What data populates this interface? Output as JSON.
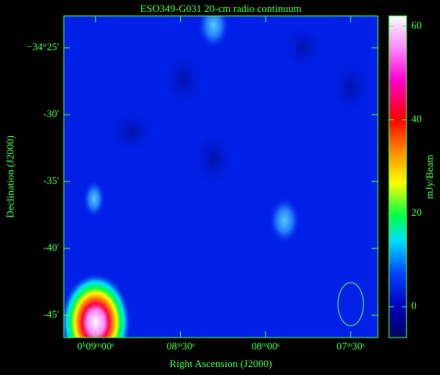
{
  "chart_data": {
    "type": "image",
    "title": "ESO349-G031  20-cm radio continuum",
    "xlabel": "Right Ascension (J2000)",
    "ylabel": "Declination (J2000)",
    "colorbar_label": "mJy/Beam",
    "xlim": [
      551.2,
      440.4
    ],
    "xticks": [
      {
        "value": 540,
        "label": "0ʰ09ᵐ00ˢ"
      },
      {
        "value": 510,
        "label": "08ᵐ30ˢ"
      },
      {
        "value": 480,
        "label": "08ᵐ00ˢ"
      },
      {
        "value": 450,
        "label": "07ᵐ30ˢ"
      }
    ],
    "ylim": [
      -34.7778,
      -34.377
    ],
    "yticks": [
      {
        "value": -34.75,
        "label": "-45'"
      },
      {
        "value": -34.6667,
        "label": "-40'"
      },
      {
        "value": -34.5833,
        "label": "-35'"
      },
      {
        "value": -34.5,
        "label": "-30'"
      },
      {
        "value": -34.4167,
        "label": "−34°25'"
      }
    ],
    "clim": [
      -6.6,
      62.2
    ],
    "cticks": [
      0,
      20,
      40,
      60
    ]
  }
}
